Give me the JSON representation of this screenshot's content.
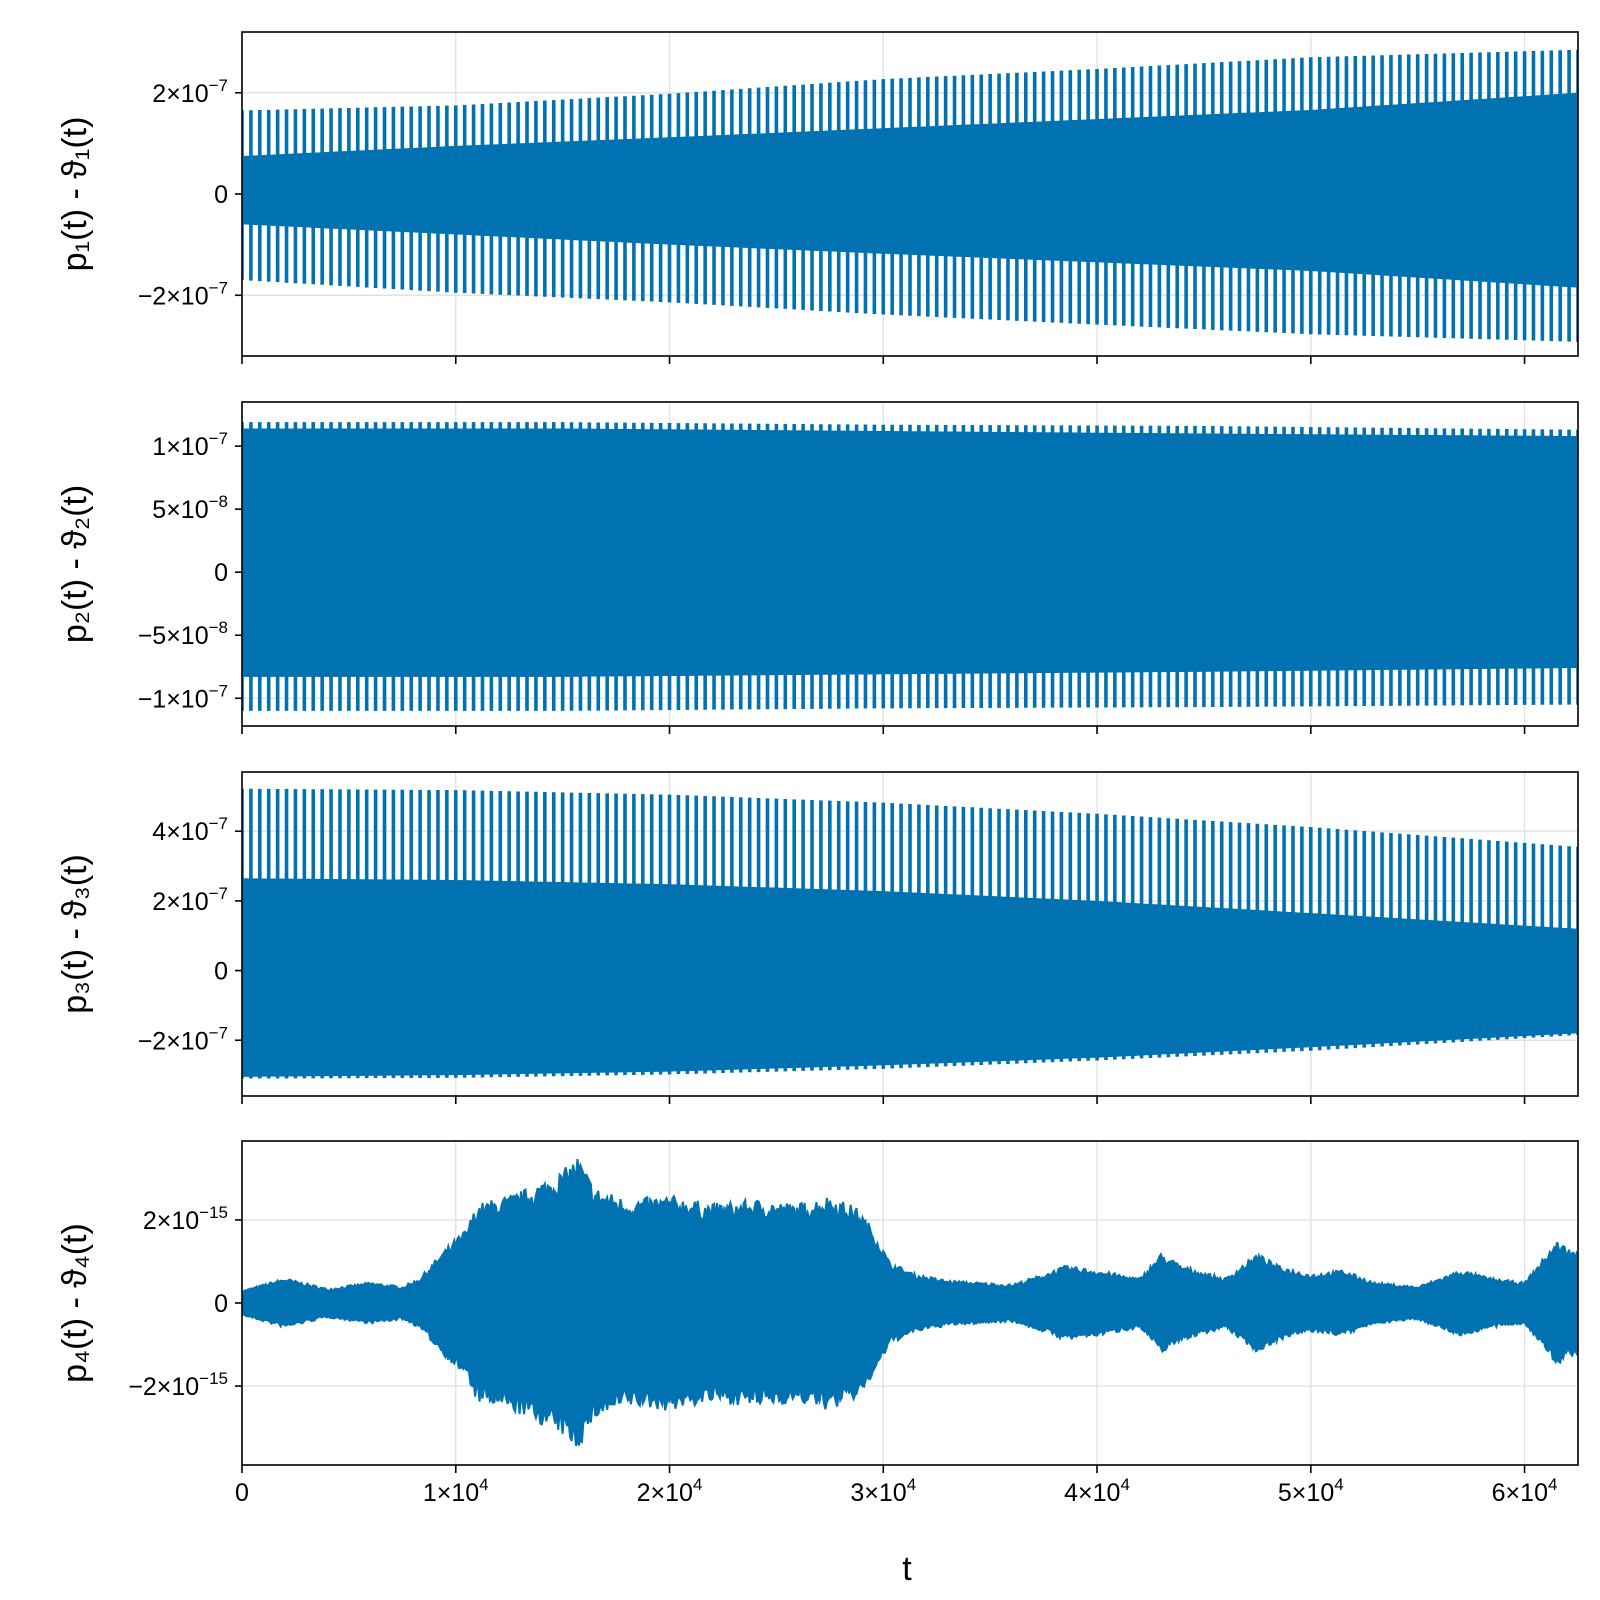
{
  "series_color": "#0072b2",
  "shared_x_axis": {
    "label": "t",
    "range": [
      0,
      62500
    ],
    "ticks": [
      0,
      10000,
      20000,
      30000,
      40000,
      50000,
      60000
    ],
    "tick_labels": [
      {
        "mant": "0",
        "exp": ""
      },
      {
        "mant": "1×10",
        "exp": "4"
      },
      {
        "mant": "2×10",
        "exp": "4"
      },
      {
        "mant": "3×10",
        "exp": "4"
      },
      {
        "mant": "4×10",
        "exp": "4"
      },
      {
        "mant": "5×10",
        "exp": "4"
      },
      {
        "mant": "6×10",
        "exp": "4"
      }
    ]
  },
  "chart_data": [
    {
      "type": "line",
      "ylabel": "p₁(t) - ϑ₁(t)",
      "ylim": [
        -3.2e-07,
        3.2e-07
      ],
      "yticks": [
        -2e-07,
        0,
        2e-07
      ],
      "ytick_labels": [
        {
          "mant": "−2×10",
          "exp": "−7"
        },
        {
          "mant": "0",
          "exp": ""
        },
        {
          "mant": "2×10",
          "exp": "−7"
        }
      ],
      "grid": true,
      "oscillation_cycles": 150,
      "envelope": {
        "t": [
          0,
          10000,
          20000,
          30000,
          40000,
          50000,
          62500
        ],
        "upper": [
          1.65e-07,
          1.75e-07,
          1.98e-07,
          2.27e-07,
          2.47e-07,
          2.7e-07,
          2.85e-07
        ],
        "lower": [
          -1.7e-07,
          -1.95e-07,
          -2.14e-07,
          -2.38e-07,
          -2.58e-07,
          -2.77e-07,
          -2.92e-07
        ],
        "core_upper": [
          7.5e-08,
          9.5e-08,
          1.12e-07,
          1.3e-07,
          1.48e-07,
          1.66e-07,
          2e-07
        ],
        "core_lower": [
          -6e-08,
          -8e-08,
          -1e-07,
          -1.18e-07,
          -1.35e-07,
          -1.52e-07,
          -1.85e-07
        ]
      }
    },
    {
      "type": "line",
      "ylabel": "p₂(t) - ϑ₂(t)",
      "ylim": [
        -1.22e-07,
        1.35e-07
      ],
      "yticks": [
        -1e-07,
        -5e-08,
        0,
        5e-08,
        1e-07
      ],
      "ytick_labels": [
        {
          "mant": "−1×10",
          "exp": "−7"
        },
        {
          "mant": "−5×10",
          "exp": "−8"
        },
        {
          "mant": "0",
          "exp": ""
        },
        {
          "mant": "5×10",
          "exp": "−8"
        },
        {
          "mant": "1×10",
          "exp": "−7"
        }
      ],
      "grid": true,
      "oscillation_cycles": 150,
      "envelope": {
        "t": [
          0,
          15000,
          30000,
          45000,
          62500
        ],
        "upper": [
          1.19e-07,
          1.19e-07,
          1.17e-07,
          1.16e-07,
          1.13e-07
        ],
        "lower": [
          -1.1e-07,
          -1.1e-07,
          -1.08e-07,
          -1.07e-07,
          -1.05e-07
        ],
        "core_upper": [
          1.14e-07,
          1.14e-07,
          1.12e-07,
          1.1e-07,
          1.08e-07
        ],
        "core_lower": [
          -8.3e-08,
          -8.3e-08,
          -8.1e-08,
          -7.9e-08,
          -7.6e-08
        ]
      }
    },
    {
      "type": "line",
      "ylabel": "p₃(t) - ϑ₃(t)",
      "ylim": [
        -3.6e-07,
        5.7e-07
      ],
      "yticks": [
        -2e-07,
        0,
        2e-07,
        4e-07
      ],
      "ytick_labels": [
        {
          "mant": "−2×10",
          "exp": "−7"
        },
        {
          "mant": "0",
          "exp": ""
        },
        {
          "mant": "2×10",
          "exp": "−7"
        },
        {
          "mant": "4×10",
          "exp": "−7"
        }
      ],
      "grid": true,
      "oscillation_cycles": 150,
      "envelope": {
        "t": [
          0,
          10000,
          20000,
          30000,
          40000,
          50000,
          62500
        ],
        "upper": [
          5.22e-07,
          5.18e-07,
          5.05e-07,
          4.82e-07,
          4.5e-07,
          4.12e-07,
          3.55e-07
        ],
        "lower": [
          -3.1e-07,
          -3.08e-07,
          -2.98e-07,
          -2.82e-07,
          -2.58e-07,
          -2.3e-07,
          -1.85e-07
        ],
        "core_upper": [
          2.65e-07,
          2.6e-07,
          2.48e-07,
          2.28e-07,
          2e-07,
          1.65e-07,
          1.2e-07
        ],
        "core_lower": [
          -3.05e-07,
          -3e-07,
          -2.9e-07,
          -2.72e-07,
          -2.5e-07,
          -2.2e-07,
          -1.8e-07
        ]
      }
    },
    {
      "type": "line",
      "ylabel": "p₄(t) - ϑ₄(t)",
      "ylim": [
        -3.9e-15,
        3.9e-15
      ],
      "yticks": [
        -2e-15,
        0,
        2e-15
      ],
      "ytick_labels": [
        {
          "mant": "−2×10",
          "exp": "−15"
        },
        {
          "mant": "0",
          "exp": ""
        },
        {
          "mant": "2×10",
          "exp": "−15"
        }
      ],
      "grid": true,
      "envelope_points": [
        [
          0,
          3e-16
        ],
        [
          2000,
          6e-16
        ],
        [
          4000,
          3.5e-16
        ],
        [
          6000,
          5e-16
        ],
        [
          7500,
          4e-16
        ],
        [
          8300,
          6e-16
        ],
        [
          9500,
          1.3e-15
        ],
        [
          10500,
          1.8e-15
        ],
        [
          11000,
          2.4e-15
        ],
        [
          12500,
          2.6e-15
        ],
        [
          13500,
          2.8e-15
        ],
        [
          15000,
          3.2e-15
        ],
        [
          15700,
          3.55e-15
        ],
        [
          16500,
          2.8e-15
        ],
        [
          18000,
          2.5e-15
        ],
        [
          20000,
          2.6e-15
        ],
        [
          22000,
          2.4e-15
        ],
        [
          24000,
          2.5e-15
        ],
        [
          26000,
          2.4e-15
        ],
        [
          27500,
          2.6e-15
        ],
        [
          28800,
          2.3e-15
        ],
        [
          29500,
          1.8e-15
        ],
        [
          30300,
          1e-15
        ],
        [
          31500,
          7e-16
        ],
        [
          33000,
          5.5e-16
        ],
        [
          34500,
          5e-16
        ],
        [
          36000,
          4.5e-16
        ],
        [
          37500,
          7e-16
        ],
        [
          38500,
          9e-16
        ],
        [
          40000,
          8e-16
        ],
        [
          42000,
          6e-16
        ],
        [
          43000,
          1.2e-15
        ],
        [
          44000,
          9e-16
        ],
        [
          46000,
          6e-16
        ],
        [
          47500,
          1.2e-15
        ],
        [
          48500,
          9e-16
        ],
        [
          50000,
          7e-16
        ],
        [
          51500,
          8e-16
        ],
        [
          53000,
          5e-16
        ],
        [
          55000,
          4e-16
        ],
        [
          57000,
          8e-16
        ],
        [
          58500,
          6e-16
        ],
        [
          60000,
          5e-16
        ],
        [
          61500,
          1.5e-15
        ],
        [
          62500,
          1.2e-15
        ]
      ]
    }
  ]
}
